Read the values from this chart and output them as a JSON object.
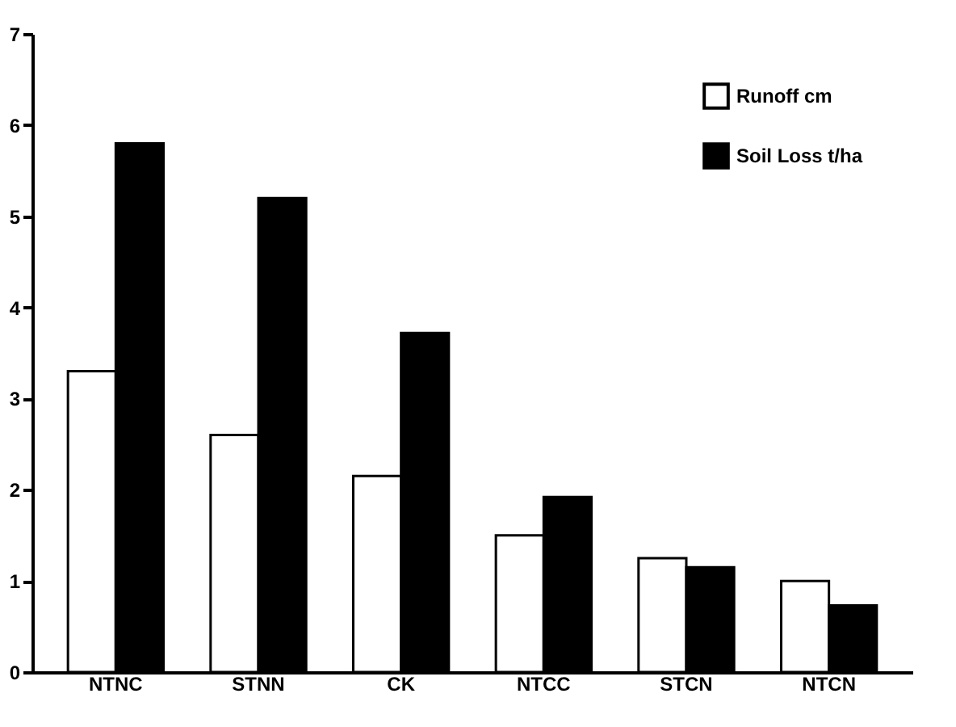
{
  "chart_data": {
    "type": "bar",
    "categories": [
      "NTNC",
      "STNN",
      "CK",
      "NTCC",
      "STCN",
      "NTCN"
    ],
    "series": [
      {
        "name": "Runoff cm",
        "color": "#ffffff",
        "values": [
          3.3,
          2.6,
          2.15,
          1.5,
          1.25,
          1.0
        ]
      },
      {
        "name": "Soil Loss t/ha",
        "color": "#000000",
        "values": [
          5.8,
          5.2,
          3.72,
          1.92,
          1.15,
          0.73
        ]
      }
    ],
    "ylim": [
      0,
      7
    ],
    "yticks": [
      0,
      1,
      2,
      3,
      4,
      5,
      6,
      7
    ],
    "grid": false,
    "legend": "top right"
  }
}
